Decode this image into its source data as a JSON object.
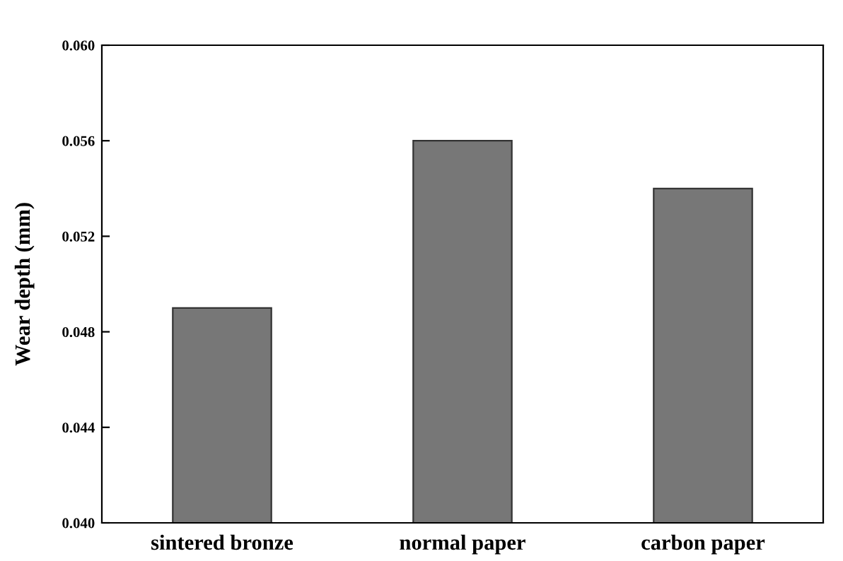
{
  "chart_data": {
    "type": "bar",
    "ylabel": "Wear depth (mm)",
    "categories": [
      "sintered bronze",
      "normal paper",
      "carbon paper"
    ],
    "values": [
      0.049,
      0.056,
      0.054
    ],
    "color": "#777777",
    "ylim": [
      0.04,
      0.06
    ],
    "yticks": [
      {
        "value": 0.04,
        "label": "0.040"
      },
      {
        "value": 0.044,
        "label": "0.044"
      },
      {
        "value": 0.048,
        "label": "0.048"
      },
      {
        "value": 0.052,
        "label": "0.052"
      },
      {
        "value": 0.056,
        "label": "0.056"
      },
      {
        "value": 0.06,
        "label": "0.060"
      }
    ],
    "grid": false
  }
}
